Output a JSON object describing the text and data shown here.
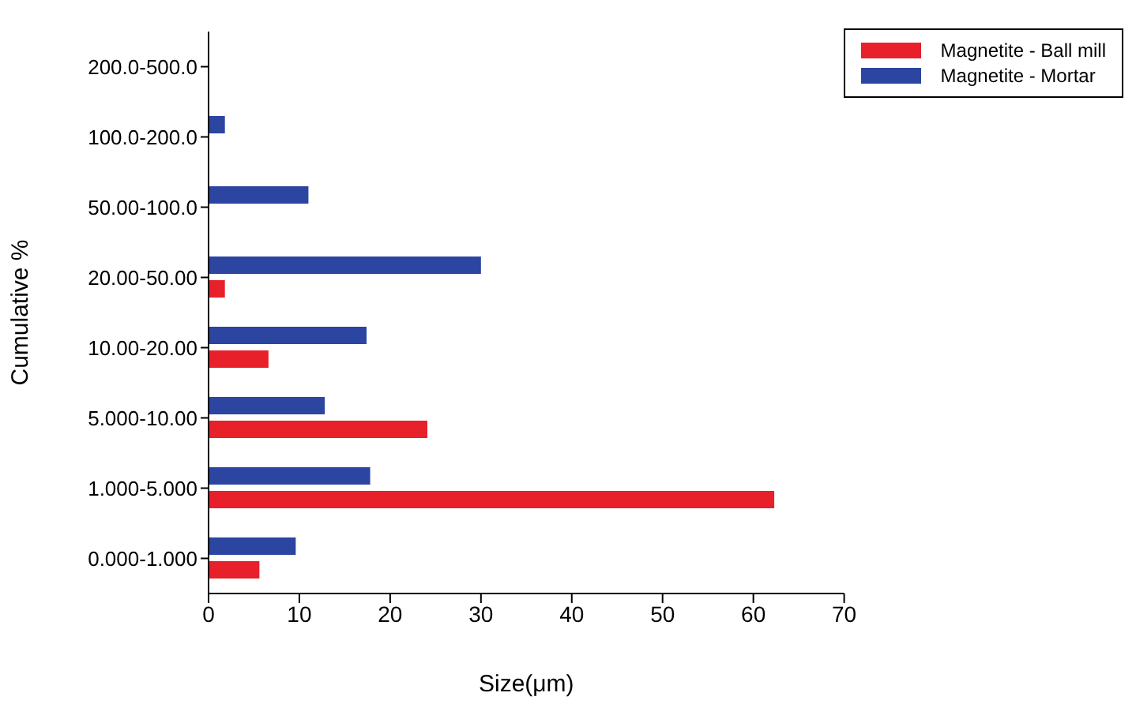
{
  "chart_data": {
    "type": "bar",
    "orientation": "horizontal",
    "xlabel": "Size(μm)",
    "ylabel": "Cumulative %",
    "categories": [
      "200.0-500.0",
      "100.0-200.0",
      "50.00-100.0",
      "20.00-50.00",
      "10.00-20.00",
      "5.000-10.00",
      "1.000-5.000",
      "0.000-1.000"
    ],
    "series": [
      {
        "name": "Magnetite - Ball mill",
        "color": "#e8202a",
        "values": [
          0,
          0,
          0,
          1.8,
          6.6,
          24.1,
          62.3,
          5.6
        ]
      },
      {
        "name": "Magnetite - Mortar",
        "color": "#2b45a0",
        "values": [
          0,
          1.8,
          11.0,
          30.0,
          17.4,
          12.8,
          17.8,
          9.6
        ]
      }
    ],
    "xlim": [
      0,
      70
    ],
    "xticks": [
      0,
      10,
      20,
      30,
      40,
      50,
      60,
      70
    ],
    "grid": false,
    "legend": "top right"
  }
}
